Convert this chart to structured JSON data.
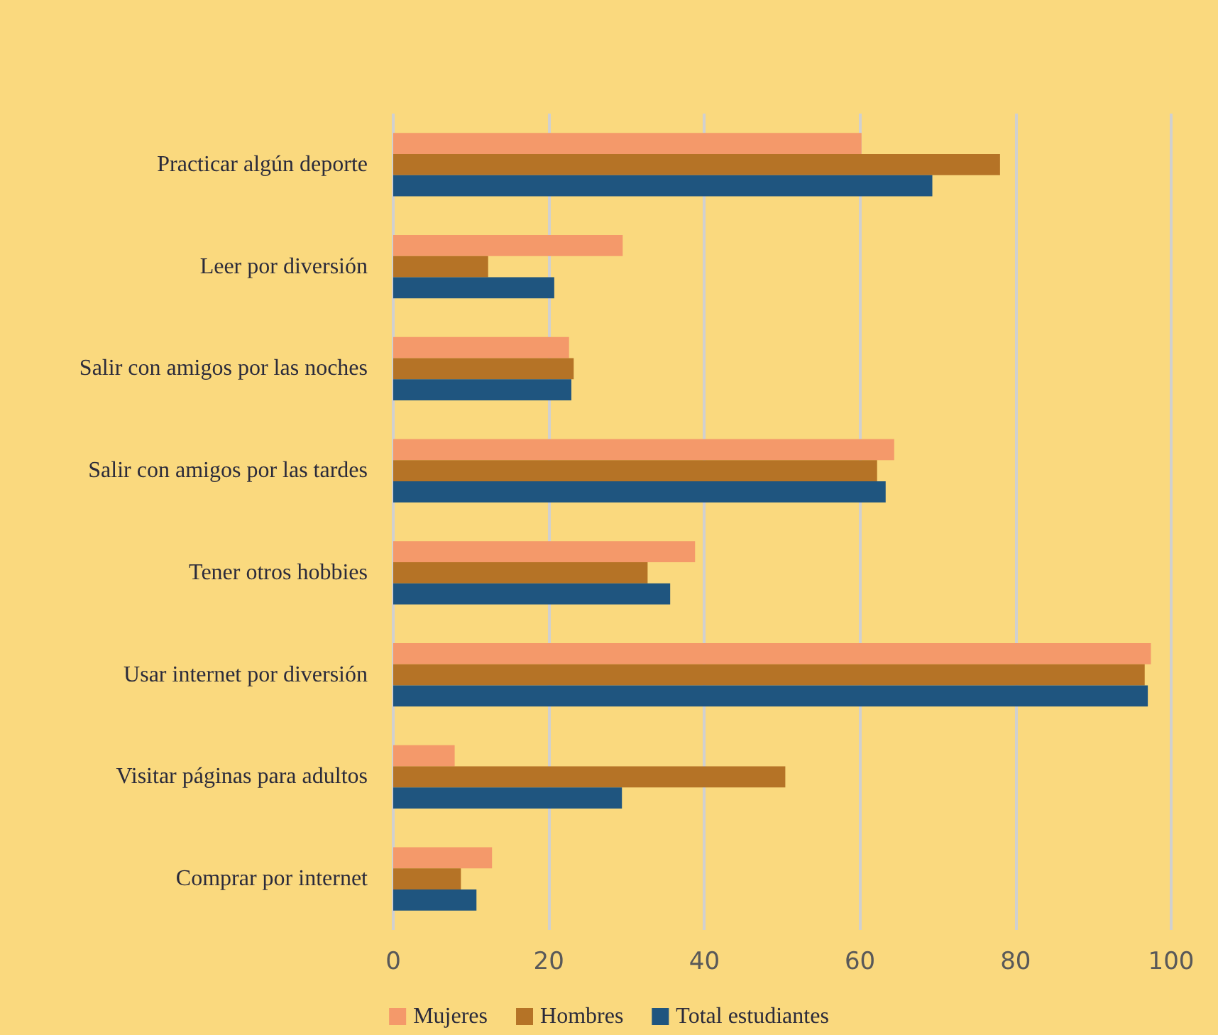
{
  "chart_data": {
    "type": "bar",
    "orientation": "horizontal",
    "categories": [
      "Practicar algún deporte",
      "Leer por diversión",
      "Salir con amigos por las noches",
      "Salir con amigos por las tardes",
      "Tener otros hobbies",
      "Usar internet por diversión",
      "Visitar páginas para adultos",
      "Comprar por internet"
    ],
    "series": [
      {
        "name": "Mujeres",
        "color": "#f4996a",
        "values": [
          60.2,
          29.5,
          22.6,
          64.4,
          38.8,
          97.4,
          7.9,
          12.7
        ]
      },
      {
        "name": "Hombres",
        "color": "#b57326",
        "values": [
          78.0,
          12.2,
          23.2,
          62.2,
          32.7,
          96.6,
          50.4,
          8.7
        ]
      },
      {
        "name": "Total estudiantes",
        "color": "#1f557f",
        "values": [
          69.3,
          20.7,
          22.9,
          63.3,
          35.6,
          97.0,
          29.4,
          10.7
        ]
      }
    ],
    "xlim": [
      0,
      100
    ],
    "xticks": [
      0,
      20,
      40,
      60,
      80,
      100
    ],
    "grid": "x",
    "legend": "bottom"
  }
}
